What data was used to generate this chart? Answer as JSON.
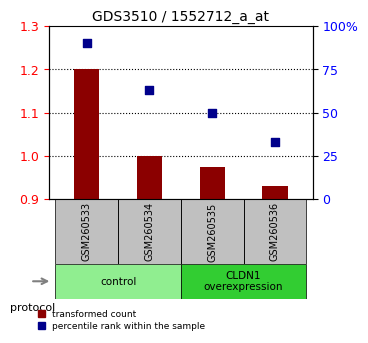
{
  "title": "GDS3510 / 1552712_a_at",
  "samples": [
    "GSM260533",
    "GSM260534",
    "GSM260535",
    "GSM260536"
  ],
  "bar_values": [
    1.2,
    1.0,
    0.975,
    0.93
  ],
  "bar_bottom": 0.9,
  "scatter_values": [
    90,
    63,
    50,
    33
  ],
  "ylim_left": [
    0.9,
    1.3
  ],
  "ylim_right": [
    0,
    100
  ],
  "yticks_left": [
    0.9,
    1.0,
    1.1,
    1.2,
    1.3
  ],
  "yticks_right": [
    0,
    25,
    50,
    75,
    100
  ],
  "ytick_labels_right": [
    "0",
    "25",
    "50",
    "75",
    "100%"
  ],
  "dotted_lines": [
    1.0,
    1.1,
    1.2
  ],
  "bar_color": "#8B0000",
  "scatter_color": "#00008B",
  "groups": [
    {
      "label": "control",
      "samples": [
        0,
        1
      ],
      "color": "#90EE90"
    },
    {
      "label": "CLDN1\noverexpression",
      "samples": [
        2,
        3
      ],
      "color": "#32CD32"
    }
  ],
  "protocol_label": "protocol",
  "legend": [
    {
      "color": "#8B0000",
      "label": "transformed count"
    },
    {
      "color": "#00008B",
      "label": "percentile rank within the sample"
    }
  ],
  "bar_width": 0.4,
  "x_positions": [
    0,
    1,
    2,
    3
  ]
}
